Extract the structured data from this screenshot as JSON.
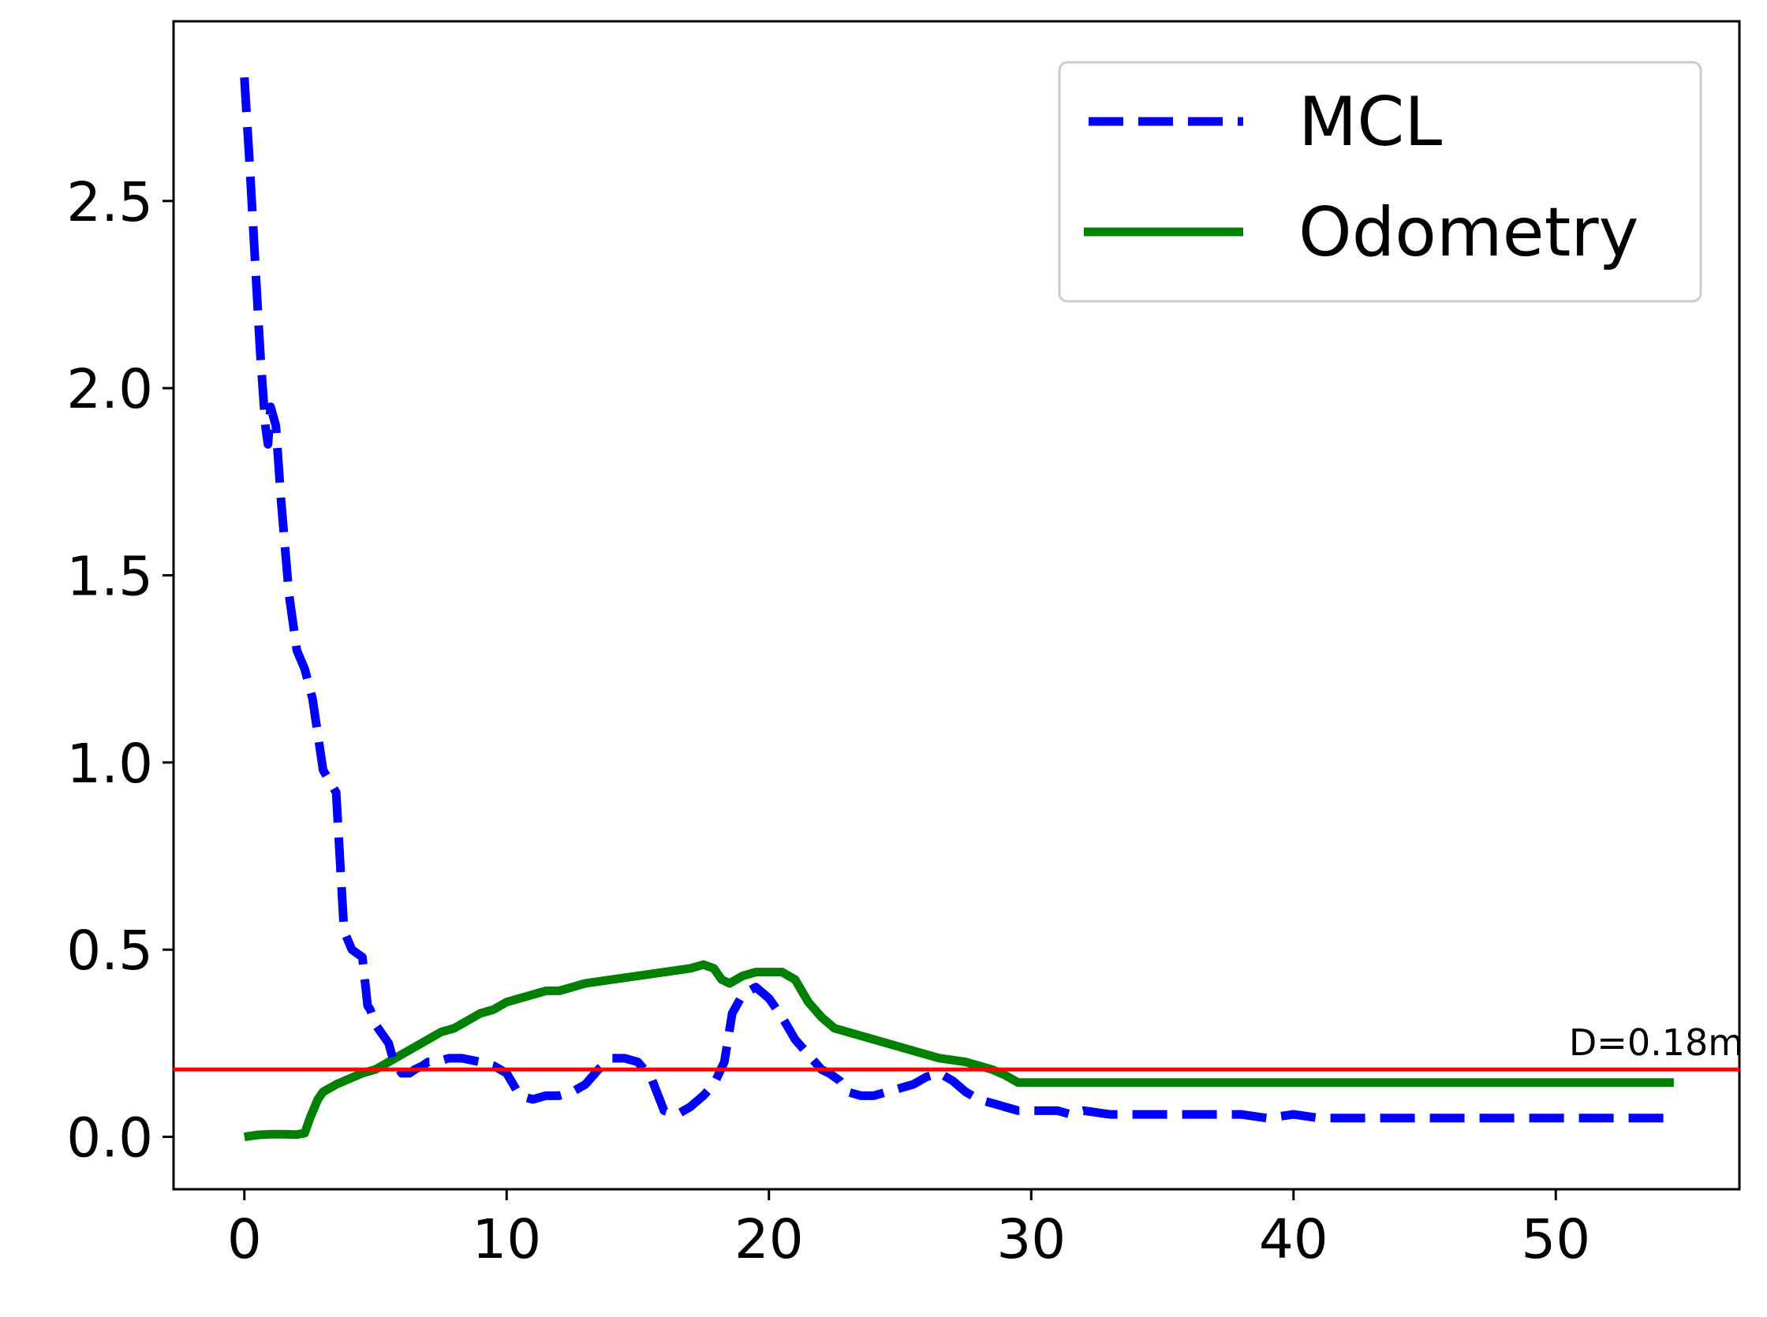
{
  "chart_data": {
    "type": "line",
    "title": "",
    "xlabel": "",
    "ylabel": "",
    "xlim": [
      -2.7,
      57.0
    ],
    "ylim": [
      -0.14,
      2.98
    ],
    "xticks": [
      0,
      10,
      20,
      30,
      40,
      50
    ],
    "yticks": [
      0.0,
      0.5,
      1.0,
      1.5,
      2.0,
      2.5
    ],
    "xtick_labels": [
      "0",
      "10",
      "20",
      "30",
      "40",
      "50"
    ],
    "ytick_labels": [
      "0.0",
      "0.5",
      "1.0",
      "1.5",
      "2.0",
      "2.5"
    ],
    "grid": false,
    "legend": {
      "position": "top-right"
    },
    "series": [
      {
        "name": "MCL",
        "color": "#0000ff",
        "style": "dashed",
        "x": [
          0,
          0.2,
          0.4,
          0.6,
          0.8,
          0.9,
          1.0,
          1.2,
          1.4,
          1.7,
          2.0,
          2.3,
          2.6,
          3.0,
          3.5,
          3.8,
          4.1,
          4.5,
          4.7,
          4.8,
          5.0,
          5.5,
          5.7,
          6.0,
          6.3,
          6.5,
          6.8,
          7.0,
          7.3,
          7.8,
          8.3,
          9.0,
          9.5,
          10.0,
          10.5,
          11.0,
          11.5,
          12.0,
          12.5,
          13.0,
          13.5,
          14.0,
          14.5,
          15.0,
          15.5,
          16.0,
          16.5,
          17.0,
          17.5,
          17.9,
          18.3,
          18.6,
          19.0,
          19.5,
          20.0,
          20.5,
          21.0,
          21.5,
          22.0,
          22.3,
          22.7,
          23.0,
          23.5,
          24.0,
          24.5,
          25.0,
          25.5,
          26.0,
          26.5,
          27.0,
          27.5,
          28.0,
          28.5,
          29.0,
          29.5,
          30.0,
          30.5,
          31.0,
          31.5,
          32.0,
          33.0,
          34.0,
          35.0,
          36.0,
          37.0,
          38.0,
          39.0,
          40.0,
          41.0,
          42.0,
          43.0,
          44.0,
          45.0,
          46.0,
          47.0,
          48.0,
          49.0,
          50.0,
          51.0,
          52.0,
          53.0,
          54.0,
          54.5
        ],
        "y": [
          2.83,
          2.6,
          2.35,
          2.1,
          1.9,
          1.85,
          1.95,
          1.9,
          1.7,
          1.45,
          1.3,
          1.25,
          1.17,
          0.98,
          0.92,
          0.55,
          0.5,
          0.48,
          0.35,
          0.34,
          0.3,
          0.25,
          0.2,
          0.17,
          0.17,
          0.18,
          0.19,
          0.2,
          0.2,
          0.21,
          0.21,
          0.2,
          0.19,
          0.17,
          0.11,
          0.1,
          0.11,
          0.11,
          0.12,
          0.14,
          0.18,
          0.21,
          0.21,
          0.2,
          0.16,
          0.07,
          0.06,
          0.08,
          0.11,
          0.14,
          0.2,
          0.33,
          0.38,
          0.4,
          0.37,
          0.32,
          0.26,
          0.22,
          0.18,
          0.17,
          0.15,
          0.12,
          0.11,
          0.11,
          0.12,
          0.13,
          0.14,
          0.16,
          0.17,
          0.15,
          0.12,
          0.1,
          0.09,
          0.08,
          0.07,
          0.07,
          0.07,
          0.07,
          0.06,
          0.07,
          0.06,
          0.06,
          0.06,
          0.06,
          0.06,
          0.06,
          0.05,
          0.06,
          0.05,
          0.05,
          0.05,
          0.05,
          0.05,
          0.05,
          0.05,
          0.05,
          0.05,
          0.05,
          0.05,
          0.05,
          0.05,
          0.05,
          0.05
        ]
      },
      {
        "name": "Odometry",
        "color": "#008000",
        "style": "solid",
        "x": [
          0,
          0.5,
          1.0,
          1.5,
          2.0,
          2.3,
          2.5,
          2.8,
          3.0,
          3.5,
          4.0,
          4.5,
          5.0,
          5.5,
          6.0,
          6.5,
          7.0,
          7.5,
          8.0,
          8.5,
          9.0,
          9.5,
          10.0,
          10.5,
          11.0,
          11.5,
          12.0,
          12.5,
          13.0,
          13.5,
          14.0,
          14.5,
          15.0,
          15.5,
          16.0,
          16.5,
          17.0,
          17.5,
          17.9,
          18.2,
          18.5,
          19.0,
          19.5,
          20.0,
          20.5,
          21.0,
          21.5,
          22.0,
          22.5,
          23.0,
          23.5,
          24.0,
          24.5,
          25.0,
          25.5,
          26.0,
          26.5,
          27.0,
          27.5,
          28.0,
          28.5,
          29.0,
          29.5,
          30.0,
          31.0,
          32.0,
          33.0,
          35.0,
          40.0,
          45.0,
          50.0,
          54.5
        ],
        "y": [
          0.0,
          0.005,
          0.007,
          0.007,
          0.006,
          0.01,
          0.05,
          0.1,
          0.12,
          0.14,
          0.155,
          0.17,
          0.18,
          0.2,
          0.22,
          0.24,
          0.26,
          0.28,
          0.29,
          0.31,
          0.33,
          0.34,
          0.36,
          0.37,
          0.38,
          0.39,
          0.39,
          0.4,
          0.41,
          0.415,
          0.42,
          0.425,
          0.43,
          0.435,
          0.44,
          0.445,
          0.45,
          0.46,
          0.45,
          0.42,
          0.41,
          0.43,
          0.44,
          0.44,
          0.44,
          0.42,
          0.36,
          0.32,
          0.29,
          0.28,
          0.27,
          0.26,
          0.25,
          0.24,
          0.23,
          0.22,
          0.21,
          0.205,
          0.2,
          0.19,
          0.18,
          0.165,
          0.145,
          0.145,
          0.145,
          0.145,
          0.145,
          0.145,
          0.145,
          0.145,
          0.145,
          0.145
        ]
      }
    ],
    "hline": {
      "y": 0.18,
      "color": "#ff0000",
      "label": "D=0.18m"
    }
  }
}
